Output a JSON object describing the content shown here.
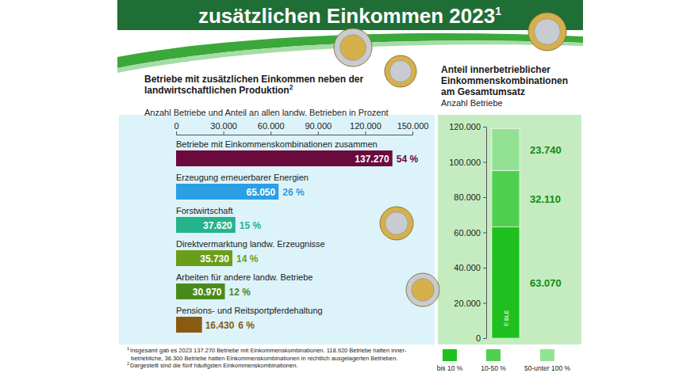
{
  "header": {
    "title": "zusätzlichen Einkommen 2023",
    "title_footnote": "1"
  },
  "chart_data": [
    {
      "type": "bar",
      "orientation": "horizontal",
      "title": "Betriebe mit zusätzlichen Einkommen neben der landwirtschaftlichen Produktion",
      "title_footnote": "2",
      "subtitle": "Anzahl Betriebe und Anteil an allen landw. Betrieben in Prozent",
      "categories": [
        "Betriebe mit Einkommenskombinationen zusammen",
        "Erzeugung erneuerbarer Energien",
        "Forstwirtschaft",
        "Direktvermarktung landw. Erzeugnisse",
        "Arbeiten für andere landw. Betriebe",
        "Pensions- und Reitsportpferdehaltung"
      ],
      "values": [
        137270,
        65050,
        37620,
        35730,
        30970,
        16430
      ],
      "value_labels": [
        "137.270",
        "65.050",
        "37.620",
        "35.730",
        "30.970",
        "16.430"
      ],
      "shares": [
        54,
        26,
        15,
        14,
        12,
        6
      ],
      "share_labels": [
        "54 %",
        "26 %",
        "15 %",
        "14 %",
        "12 %",
        "6 %"
      ],
      "colors": [
        "#6b0a3c",
        "#2a9fe4",
        "#25b38c",
        "#6a9e1a",
        "#4a8a1c",
        "#8a5a12"
      ],
      "xlim": [
        0,
        150000
      ],
      "xticks": [
        0,
        {
          "value": 30000,
          "label": "30.000"
        },
        {
          "value": 60000,
          "label": "60.000"
        },
        {
          "value": 90000,
          "label": "90.000"
        },
        {
          "value": 120000,
          "label": "120.000"
        },
        {
          "value": 150000,
          "label": "150.000"
        }
      ],
      "data_labels": true,
      "grid": false
    },
    {
      "type": "bar",
      "stacked": true,
      "title": "Anteil innerbetrieblicher Einkommenskombinationen am Gesamtumsatz",
      "subtitle": "Anzahl Betriebe",
      "categories": [
        null
      ],
      "series": [
        {
          "name": "bis 10 %",
          "color": "#1fbf1f",
          "values": [
            63070
          ],
          "value_labels": [
            "63.070"
          ]
        },
        {
          "name": "10-50 %",
          "color": "#4fd04f",
          "values": [
            32110
          ],
          "value_labels": [
            "32.110"
          ]
        },
        {
          "name": "50-unter 100 %",
          "color": "#93e293",
          "values": [
            23740
          ],
          "value_labels": [
            "23.740"
          ]
        }
      ],
      "ylim": [
        0,
        120000
      ],
      "yticks": [
        0,
        {
          "value": 20000,
          "label": "20.000"
        },
        {
          "value": 40000,
          "label": "40.000"
        },
        {
          "value": 60000,
          "label": "60.000"
        },
        {
          "value": 80000,
          "label": "80.000"
        },
        {
          "value": 100000,
          "label": "100.000"
        },
        {
          "value": 120000,
          "label": "120.000"
        }
      ],
      "data_labels": true,
      "legend": "bottom",
      "grid": false,
      "credit": "© BLE"
    }
  ],
  "footnotes": [
    {
      "marker": "1",
      "lines": [
        "Insgesamt gab es 2023 137.270 Betriebe mit Einkommenskombinationen. 118.920 Betriebe hatten inner-",
        "betriebliche, 36.300 Betriebe hatten Einkommenskombinationen in rechtlich ausgelagerten Betrieben."
      ]
    },
    {
      "marker": "2",
      "lines": [
        "Dargestellt sind die fünf häufigsten Einkommenskombinationen."
      ]
    }
  ]
}
